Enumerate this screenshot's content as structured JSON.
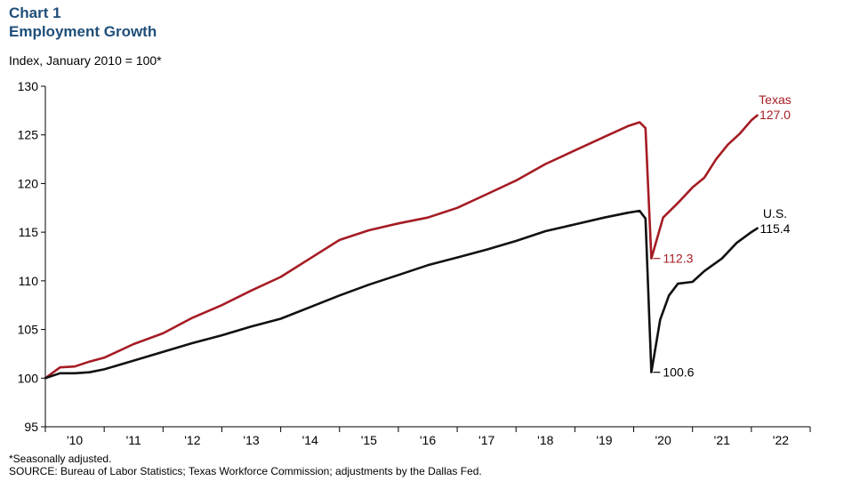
{
  "header": {
    "chart_number": "Chart 1",
    "title": "Employment Growth",
    "subtitle": "Index, January 2010 = 100*"
  },
  "footer": {
    "note": "*Seasonally adjusted.",
    "source": "SOURCE: Bureau of Labor Statistics; Texas Workforce Commission; adjustments by the Dallas Fed."
  },
  "colors": {
    "texas": "#a51c24",
    "us": "#111111",
    "title": "#1f4e79"
  },
  "chart_data": {
    "type": "line",
    "title": "Employment Growth",
    "ylabel": "Index, January 2010 = 100*",
    "xlabel": "",
    "ylim": [
      95,
      130
    ],
    "yticks": [
      95,
      100,
      105,
      110,
      115,
      120,
      125,
      130
    ],
    "xlim": [
      2010.0,
      2023.0
    ],
    "xtick_labels": [
      "'10",
      "'11",
      "'12",
      "'13",
      "'14",
      "'15",
      "'16",
      "'17",
      "'18",
      "'19",
      "'20",
      "'21",
      "'22"
    ],
    "grid": false,
    "legend": "inline labels at line ends",
    "series": [
      {
        "name": "Texas",
        "end_label": "127.0",
        "points": [
          [
            2010.0,
            100.0
          ],
          [
            2010.25,
            101.1
          ],
          [
            2010.5,
            101.2
          ],
          [
            2010.75,
            101.7
          ],
          [
            2011.0,
            102.1
          ],
          [
            2011.5,
            103.5
          ],
          [
            2012.0,
            104.6
          ],
          [
            2012.5,
            106.2
          ],
          [
            2013.0,
            107.5
          ],
          [
            2013.5,
            109.0
          ],
          [
            2014.0,
            110.4
          ],
          [
            2014.5,
            112.3
          ],
          [
            2015.0,
            114.2
          ],
          [
            2015.5,
            115.2
          ],
          [
            2016.0,
            115.9
          ],
          [
            2016.5,
            116.5
          ],
          [
            2017.0,
            117.5
          ],
          [
            2017.5,
            118.9
          ],
          [
            2018.0,
            120.3
          ],
          [
            2018.5,
            122.0
          ],
          [
            2019.0,
            123.4
          ],
          [
            2019.5,
            124.8
          ],
          [
            2019.9,
            125.9
          ],
          [
            2020.1,
            126.3
          ],
          [
            2020.2,
            125.7
          ],
          [
            2020.3,
            112.3
          ],
          [
            2020.5,
            116.5
          ],
          [
            2020.75,
            118.0
          ],
          [
            2021.0,
            119.6
          ],
          [
            2021.2,
            120.6
          ],
          [
            2021.4,
            122.5
          ],
          [
            2021.6,
            124.0
          ],
          [
            2021.8,
            125.1
          ],
          [
            2022.0,
            126.5
          ],
          [
            2022.1,
            127.0
          ]
        ]
      },
      {
        "name": "U.S.",
        "end_label": "115.4",
        "points": [
          [
            2010.0,
            100.0
          ],
          [
            2010.25,
            100.5
          ],
          [
            2010.5,
            100.5
          ],
          [
            2010.75,
            100.6
          ],
          [
            2011.0,
            100.9
          ],
          [
            2011.5,
            101.8
          ],
          [
            2012.0,
            102.7
          ],
          [
            2012.5,
            103.6
          ],
          [
            2013.0,
            104.4
          ],
          [
            2013.5,
            105.3
          ],
          [
            2014.0,
            106.1
          ],
          [
            2014.5,
            107.3
          ],
          [
            2015.0,
            108.5
          ],
          [
            2015.5,
            109.6
          ],
          [
            2016.0,
            110.6
          ],
          [
            2016.5,
            111.6
          ],
          [
            2017.0,
            112.4
          ],
          [
            2017.5,
            113.2
          ],
          [
            2018.0,
            114.1
          ],
          [
            2018.5,
            115.1
          ],
          [
            2019.0,
            115.8
          ],
          [
            2019.5,
            116.5
          ],
          [
            2019.9,
            117.0
          ],
          [
            2020.1,
            117.2
          ],
          [
            2020.2,
            116.4
          ],
          [
            2020.3,
            100.6
          ],
          [
            2020.45,
            106.0
          ],
          [
            2020.6,
            108.5
          ],
          [
            2020.75,
            109.7
          ],
          [
            2021.0,
            109.9
          ],
          [
            2021.2,
            111.0
          ],
          [
            2021.5,
            112.3
          ],
          [
            2021.75,
            113.9
          ],
          [
            2022.0,
            115.0
          ],
          [
            2022.1,
            115.4
          ]
        ]
      }
    ],
    "annotations": [
      {
        "text": "112.3",
        "series": "Texas",
        "x": 2020.3,
        "y": 112.3
      },
      {
        "text": "100.6",
        "series": "U.S.",
        "x": 2020.3,
        "y": 100.6
      }
    ]
  }
}
